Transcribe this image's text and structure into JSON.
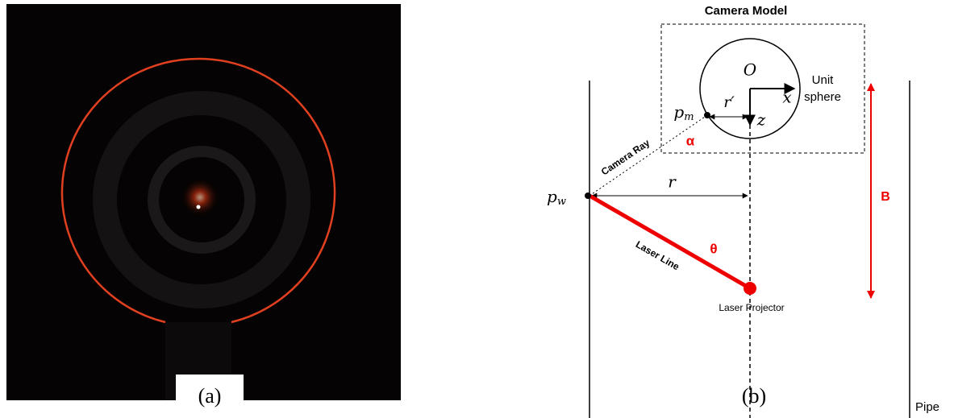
{
  "figure": {
    "panel_a": {
      "label": "(a)"
    },
    "panel_b": {
      "label": "(b)",
      "box_title": "Camera Model",
      "sphere_label": [
        "Unit",
        "sphere"
      ],
      "origin": "O",
      "axis_x": "x",
      "axis_z": "z",
      "p_m": {
        "base": "p",
        "sub": "m"
      },
      "r_prime": "r′",
      "alpha": "α",
      "camera_ray": "Camera Ray",
      "p_w": {
        "base": "p",
        "sub": "w"
      },
      "r": "r",
      "B": "B",
      "theta": "θ",
      "laser_line": "Laser Line",
      "laser_projector": "Laser Projector",
      "pipe": "Pipe"
    }
  }
}
